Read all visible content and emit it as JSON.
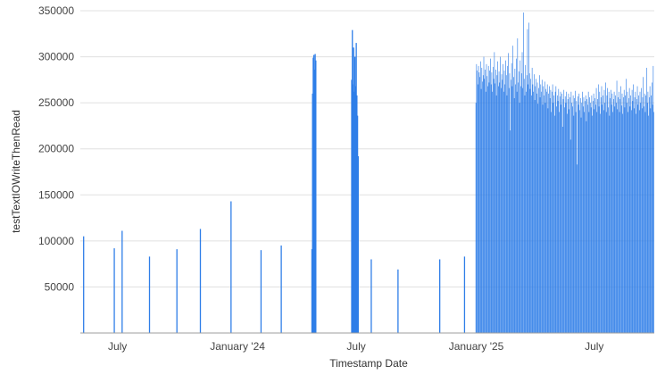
{
  "chart_data": {
    "type": "bar",
    "xlabel": "Timestamp Date",
    "ylabel": "testTextIOWriteThenRead",
    "ylim": [
      0,
      350000
    ],
    "y_ticks": [
      50000,
      100000,
      150000,
      200000,
      250000,
      300000,
      350000
    ],
    "y_tick_labels": [
      "50000",
      "100000",
      "150000",
      "200000",
      "250000",
      "300000",
      "350000"
    ],
    "x_range": [
      "2023-05-05",
      "2025-10-01"
    ],
    "x_ticks": [
      {
        "date": "2023-07-01",
        "label": "July"
      },
      {
        "date": "2024-01-01",
        "label": "January '24"
      },
      {
        "date": "2024-07-01",
        "label": "July"
      },
      {
        "date": "2025-01-01",
        "label": "January '25"
      },
      {
        "date": "2025-07-01",
        "label": "July"
      }
    ],
    "grid": true,
    "legend": "none",
    "bar_color": "#2f7ee8",
    "sparse_points": [
      {
        "date": "2023-05-10",
        "value": 105000
      },
      {
        "date": "2023-06-26",
        "value": 92000
      },
      {
        "date": "2023-07-08",
        "value": 111000
      },
      {
        "date": "2023-08-19",
        "value": 83000
      },
      {
        "date": "2023-09-30",
        "value": 91000
      },
      {
        "date": "2023-11-05",
        "value": 113000
      },
      {
        "date": "2023-12-22",
        "value": 143000
      },
      {
        "date": "2024-02-06",
        "value": 90000
      },
      {
        "date": "2024-03-08",
        "value": 95000
      },
      {
        "date": "2024-04-24",
        "value": 91000
      },
      {
        "date": "2024-04-25",
        "value": 260000
      },
      {
        "date": "2024-04-26",
        "value": 299000
      },
      {
        "date": "2024-04-27",
        "value": 302000
      },
      {
        "date": "2024-04-28",
        "value": 286000
      },
      {
        "date": "2024-04-29",
        "value": 303000
      },
      {
        "date": "2024-04-30",
        "value": 296000
      },
      {
        "date": "2024-06-24",
        "value": 275000
      },
      {
        "date": "2024-06-25",
        "value": 329000
      },
      {
        "date": "2024-06-26",
        "value": 270000
      },
      {
        "date": "2024-06-27",
        "value": 310000
      },
      {
        "date": "2024-06-28",
        "value": 262000
      },
      {
        "date": "2024-06-29",
        "value": 300000
      },
      {
        "date": "2024-06-30",
        "value": 268000
      },
      {
        "date": "2024-07-01",
        "value": 315000
      },
      {
        "date": "2024-07-02",
        "value": 258000
      },
      {
        "date": "2024-07-03",
        "value": 236000
      },
      {
        "date": "2024-07-04",
        "value": 192000
      },
      {
        "date": "2024-07-24",
        "value": 80000
      },
      {
        "date": "2024-09-03",
        "value": 69000
      },
      {
        "date": "2024-11-06",
        "value": 80000
      },
      {
        "date": "2024-12-14",
        "value": 83000
      }
    ],
    "dense_series": {
      "start": "2024-12-31",
      "end": "2025-09-30",
      "values": [
        250000,
        292000,
        285000,
        270000,
        290000,
        283000,
        278000,
        295000,
        265000,
        288000,
        273000,
        280000,
        300000,
        276000,
        286000,
        262000,
        292000,
        279000,
        268000,
        290000,
        272000,
        285000,
        298000,
        270000,
        283000,
        262000,
        289000,
        276000,
        305000,
        271000,
        286000,
        258000,
        280000,
        295000,
        268000,
        284000,
        272000,
        300000,
        266000,
        281000,
        275000,
        292000,
        262000,
        285000,
        270000,
        296000,
        280000,
        258000,
        290000,
        304000,
        266000,
        282000,
        220000,
        275000,
        293000,
        268000,
        312000,
        278000,
        255000,
        287000,
        270000,
        298000,
        262000,
        320000,
        272000,
        284000,
        250000,
        296000,
        268000,
        282000,
        305000,
        266000,
        348000,
        276000,
        258000,
        291000,
        262000,
        280000,
        330000,
        270000,
        337000,
        282000,
        265000,
        276000,
        258000,
        288000,
        270000,
        262000,
        281000,
        253000,
        268000,
        276000,
        260000,
        272000,
        249000,
        266000,
        280000,
        256000,
        270000,
        262000,
        275000,
        248000,
        268000,
        258000,
        273000,
        250000,
        265000,
        262000,
        270000,
        244000,
        260000,
        268000,
        255000,
        264000,
        240000,
        262000,
        270000,
        250000,
        258000,
        236000,
        262000,
        268000,
        246000,
        258000,
        252000,
        265000,
        240000,
        257000,
        262000,
        248000,
        260000,
        224000,
        254000,
        264000,
        245000,
        257000,
        250000,
        262000,
        238000,
        254000,
        260000,
        243000,
        256000,
        210000,
        262000,
        250000,
        246000,
        258000,
        236000,
        255000,
        263000,
        240000,
        252000,
        183000,
        257000,
        248000,
        260000,
        242000,
        255000,
        234000,
        250000,
        262000,
        246000,
        256000,
        240000,
        252000,
        258000,
        230000,
        254000,
        248000,
        262000,
        240000,
        256000,
        250000,
        245000,
        258000,
        236000,
        252000,
        260000,
        243000,
        255000,
        248000,
        266000,
        240000,
        254000,
        270000,
        246000,
        262000,
        238000,
        256000,
        268000,
        248000,
        258000,
        242000,
        264000,
        250000,
        272000,
        240000,
        258000,
        266000,
        245000,
        262000,
        236000,
        255000,
        264000,
        248000,
        260000,
        240000,
        254000,
        262000,
        246000,
        258000,
        250000,
        274000,
        243000,
        256000,
        262000,
        240000,
        254000,
        268000,
        247000,
        260000,
        238000,
        256000,
        264000,
        245000,
        258000,
        276000,
        250000,
        262000,
        240000,
        255000,
        266000,
        246000,
        258000,
        242000,
        264000,
        252000,
        270000,
        244000,
        256000,
        262000,
        238000,
        254000,
        268000,
        248000,
        258000,
        242000,
        262000,
        250000,
        266000,
        244000,
        256000,
        278000,
        246000,
        260000,
        240000,
        258000,
        288000,
        250000,
        262000,
        236000,
        256000,
        268000,
        244000,
        258000,
        272000,
        248000,
        290000,
        240000
      ]
    }
  }
}
